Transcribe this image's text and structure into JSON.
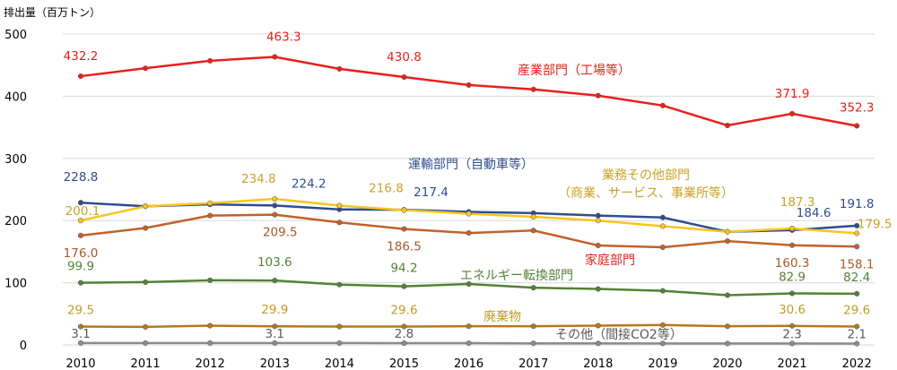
{
  "chart_data": {
    "type": "line",
    "ylabel": "排出量（百万トン）",
    "ylim": [
      0,
      500
    ],
    "yticks": [
      0,
      100,
      200,
      300,
      400,
      500
    ],
    "grid": true,
    "x": [
      "2010",
      "2011",
      "2012",
      "2013",
      "2014",
      "2015",
      "2016",
      "2017",
      "2018",
      "2019",
      "2020",
      "2021",
      "2022"
    ],
    "series": [
      {
        "name": "産業部門（工場等）",
        "color": "#e8201c",
        "label_color": "#e8201c",
        "values": [
          432.2,
          445,
          457,
          463.3,
          444,
          430.8,
          418,
          411,
          401,
          385,
          353,
          371.9,
          352.3
        ],
        "labeled": {
          "0": "432.2",
          "3": "463.3",
          "5": "430.8",
          "11": "371.9",
          "12": "352.3"
        }
      },
      {
        "name": "運輸部門（自動車等）",
        "color": "#2f4d8c",
        "label_color": "#2f4d8c",
        "values": [
          228.8,
          223,
          226,
          224.2,
          218,
          217.4,
          214,
          212,
          208,
          205,
          182,
          184.6,
          191.8
        ],
        "labeled": {
          "0": "228.8",
          "3": "224.2",
          "5": "217.4",
          "11": "184.6",
          "12": "191.8"
        }
      },
      {
        "name": "業務その他部門（商業、サービス、事業所等）",
        "color": "#f7c51e",
        "label_color": "#c9a227",
        "values": [
          200.1,
          223,
          228,
          234.8,
          224,
          216.8,
          211,
          206,
          200,
          191,
          182,
          187.3,
          179.5
        ],
        "labeled": {
          "0": "200.1",
          "3": "234.8",
          "5": "216.8",
          "11": "187.3",
          "12": "179.5"
        }
      },
      {
        "name": "家庭部門",
        "color": "#c2612b",
        "label_color": "#a65a2a",
        "name_color": "#e8201c",
        "values": [
          176.0,
          188,
          208,
          209.5,
          197,
          186.5,
          180,
          184,
          160,
          157,
          167,
          160.3,
          158.1
        ],
        "labeled": {
          "0": "176.0",
          "3": "209.5",
          "5": "186.5",
          "11": "160.3",
          "12": "158.1"
        }
      },
      {
        "name": "エネルギー転換部門",
        "color": "#548235",
        "label_color": "#548235",
        "values": [
          99.9,
          101,
          104,
          103.6,
          97,
          94.2,
          98,
          92,
          90,
          87,
          80,
          82.9,
          82.4
        ],
        "labeled": {
          "0": "99.9",
          "3": "103.6",
          "5": "94.2",
          "11": "82.9",
          "12": "82.4"
        }
      },
      {
        "name": "廃棄物",
        "color": "#b5781e",
        "label_color": "#c09a2a",
        "values": [
          29.5,
          29,
          31,
          29.9,
          29.5,
          29.6,
          30,
          30,
          31,
          32,
          30,
          30.6,
          29.6
        ],
        "labeled": {
          "0": "29.5",
          "3": "29.9",
          "5": "29.6",
          "11": "30.6",
          "12": "29.6"
        }
      },
      {
        "name": "その他（間接CO2等）",
        "color": "#8c8c8c",
        "label_color": "#595959",
        "values": [
          3.1,
          3.0,
          3.0,
          3.1,
          3.0,
          2.8,
          2.8,
          2.6,
          2.5,
          2.4,
          2.3,
          2.3,
          2.1
        ],
        "labeled": {
          "0": "3.1",
          "3": "3.1",
          "5": "2.8",
          "11": "2.3",
          "12": "2.1"
        }
      }
    ]
  }
}
